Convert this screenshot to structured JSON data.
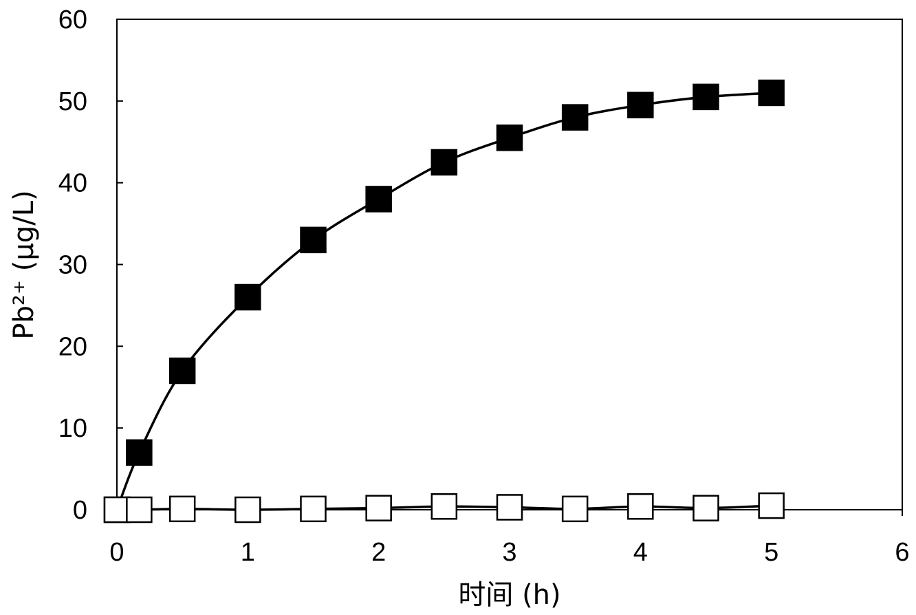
{
  "chart_data": {
    "type": "line",
    "xlabel": "时间 (h)",
    "ylabel": "Pb²⁺ (μg/L)",
    "xlim": [
      0,
      6
    ],
    "ylim": [
      0,
      60
    ],
    "xticks": [
      0,
      1,
      2,
      3,
      4,
      5,
      6
    ],
    "yticks": [
      0,
      10,
      20,
      30,
      40,
      50,
      60
    ],
    "grid": false,
    "legend": "none",
    "series": [
      {
        "marker": "filled-square",
        "color": "#000000",
        "x": [
          0,
          0.17,
          0.5,
          1,
          1.5,
          2,
          2.5,
          3,
          3.5,
          4,
          4.5,
          5
        ],
        "y": [
          0,
          7,
          17,
          26,
          33,
          38,
          42.5,
          45.5,
          48,
          49.5,
          50.5,
          51
        ]
      },
      {
        "marker": "open-square",
        "color": "#000000",
        "x": [
          0,
          0.17,
          0.5,
          1,
          1.5,
          2,
          2.5,
          3,
          3.5,
          4,
          4.5,
          5
        ],
        "y": [
          0,
          0,
          0.1,
          0,
          0.1,
          0.2,
          0.4,
          0.3,
          0.1,
          0.4,
          0.2,
          0.5
        ]
      }
    ]
  }
}
